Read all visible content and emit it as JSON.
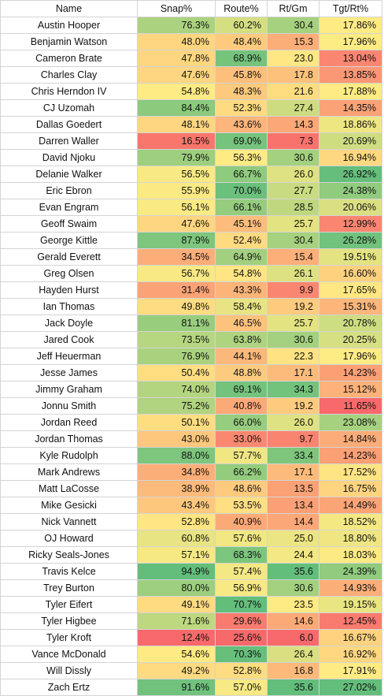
{
  "headers": [
    "Name",
    "Snap%",
    "Route%",
    "Rt/Gm",
    "Tgt/Rt%"
  ],
  "rows": [
    {
      "name": "Austin Hooper",
      "snap": "76.3%",
      "route": "60.2%",
      "rt": "30.4",
      "tgt": "17.86%"
    },
    {
      "name": "Benjamin Watson",
      "snap": "48.0%",
      "route": "48.4%",
      "rt": "15.3",
      "tgt": "17.96%"
    },
    {
      "name": "Cameron Brate",
      "snap": "47.8%",
      "route": "68.9%",
      "rt": "23.0",
      "tgt": "13.04%"
    },
    {
      "name": "Charles Clay",
      "snap": "47.6%",
      "route": "45.8%",
      "rt": "17.8",
      "tgt": "13.85%"
    },
    {
      "name": "Chris Herndon IV",
      "snap": "54.8%",
      "route": "48.3%",
      "rt": "21.6",
      "tgt": "17.88%"
    },
    {
      "name": "CJ Uzomah",
      "snap": "84.4%",
      "route": "52.3%",
      "rt": "27.4",
      "tgt": "14.35%"
    },
    {
      "name": "Dallas Goedert",
      "snap": "48.1%",
      "route": "43.6%",
      "rt": "14.3",
      "tgt": "18.86%"
    },
    {
      "name": "Darren Waller",
      "snap": "16.5%",
      "route": "69.0%",
      "rt": "7.3",
      "tgt": "20.69%"
    },
    {
      "name": "David Njoku",
      "snap": "79.9%",
      "route": "56.3%",
      "rt": "30.6",
      "tgt": "16.94%"
    },
    {
      "name": "Delanie Walker",
      "snap": "56.5%",
      "route": "66.7%",
      "rt": "26.0",
      "tgt": "26.92%"
    },
    {
      "name": "Eric Ebron",
      "snap": "55.9%",
      "route": "70.0%",
      "rt": "27.7",
      "tgt": "24.38%"
    },
    {
      "name": "Evan Engram",
      "snap": "56.1%",
      "route": "66.1%",
      "rt": "28.5",
      "tgt": "20.06%"
    },
    {
      "name": "Geoff Swaim",
      "snap": "47.6%",
      "route": "45.1%",
      "rt": "25.7",
      "tgt": "12.99%"
    },
    {
      "name": "George Kittle",
      "snap": "87.9%",
      "route": "52.4%",
      "rt": "30.4",
      "tgt": "26.28%"
    },
    {
      "name": "Gerald Everett",
      "snap": "34.5%",
      "route": "64.9%",
      "rt": "15.4",
      "tgt": "19.51%"
    },
    {
      "name": "Greg Olsen",
      "snap": "56.7%",
      "route": "54.8%",
      "rt": "26.1",
      "tgt": "16.60%"
    },
    {
      "name": "Hayden Hurst",
      "snap": "31.4%",
      "route": "43.3%",
      "rt": "9.9",
      "tgt": "17.65%"
    },
    {
      "name": "Ian Thomas",
      "snap": "49.8%",
      "route": "58.4%",
      "rt": "19.2",
      "tgt": "15.31%"
    },
    {
      "name": "Jack Doyle",
      "snap": "81.1%",
      "route": "46.5%",
      "rt": "25.7",
      "tgt": "20.78%"
    },
    {
      "name": "Jared Cook",
      "snap": "73.5%",
      "route": "63.8%",
      "rt": "30.6",
      "tgt": "20.25%"
    },
    {
      "name": "Jeff Heuerman",
      "snap": "76.9%",
      "route": "44.1%",
      "rt": "22.3",
      "tgt": "17.96%"
    },
    {
      "name": "Jesse James",
      "snap": "50.4%",
      "route": "48.8%",
      "rt": "17.1",
      "tgt": "14.23%"
    },
    {
      "name": "Jimmy Graham",
      "snap": "74.0%",
      "route": "69.1%",
      "rt": "34.3",
      "tgt": "15.12%"
    },
    {
      "name": "Jonnu Smith",
      "snap": "75.2%",
      "route": "40.8%",
      "rt": "19.2",
      "tgt": "11.65%"
    },
    {
      "name": "Jordan Reed",
      "snap": "50.1%",
      "route": "66.0%",
      "rt": "26.0",
      "tgt": "23.08%"
    },
    {
      "name": "Jordan Thomas",
      "snap": "43.0%",
      "route": "33.0%",
      "rt": "9.7",
      "tgt": "14.84%"
    },
    {
      "name": "Kyle Rudolph",
      "snap": "88.0%",
      "route": "57.7%",
      "rt": "33.4",
      "tgt": "14.23%"
    },
    {
      "name": "Mark Andrews",
      "snap": "34.8%",
      "route": "66.2%",
      "rt": "17.1",
      "tgt": "17.52%"
    },
    {
      "name": "Matt LaCosse",
      "snap": "38.9%",
      "route": "48.6%",
      "rt": "13.5",
      "tgt": "16.75%"
    },
    {
      "name": "Mike Gesicki",
      "snap": "43.4%",
      "route": "53.5%",
      "rt": "13.4",
      "tgt": "14.49%"
    },
    {
      "name": "Nick Vannett",
      "snap": "52.8%",
      "route": "40.9%",
      "rt": "14.4",
      "tgt": "18.52%"
    },
    {
      "name": "OJ Howard",
      "snap": "60.8%",
      "route": "57.6%",
      "rt": "25.0",
      "tgt": "18.80%"
    },
    {
      "name": "Ricky Seals-Jones",
      "snap": "57.1%",
      "route": "68.3%",
      "rt": "24.4",
      "tgt": "18.03%"
    },
    {
      "name": "Travis Kelce",
      "snap": "94.9%",
      "route": "57.4%",
      "rt": "35.6",
      "tgt": "24.39%"
    },
    {
      "name": "Trey Burton",
      "snap": "80.0%",
      "route": "56.9%",
      "rt": "30.6",
      "tgt": "14.93%"
    },
    {
      "name": "Tyler Eifert",
      "snap": "49.1%",
      "route": "70.7%",
      "rt": "23.5",
      "tgt": "19.15%"
    },
    {
      "name": "Tyler Higbee",
      "snap": "71.6%",
      "route": "29.6%",
      "rt": "14.6",
      "tgt": "12.45%"
    },
    {
      "name": "Tyler Kroft",
      "snap": "12.4%",
      "route": "25.6%",
      "rt": "6.0",
      "tgt": "16.67%"
    },
    {
      "name": "Vance McDonald",
      "snap": "54.6%",
      "route": "70.3%",
      "rt": "26.4",
      "tgt": "16.92%"
    },
    {
      "name": "Will Dissly",
      "snap": "49.2%",
      "route": "52.8%",
      "rt": "16.8",
      "tgt": "17.91%"
    },
    {
      "name": "Zach Ertz",
      "snap": "91.6%",
      "route": "57.0%",
      "rt": "35.6",
      "tgt": "27.02%"
    }
  ],
  "colors": {
    "scale_low": "#f8696b",
    "scale_mid": "#ffeb84",
    "scale_high": "#63be7b",
    "grid": "#d4d4d4"
  }
}
